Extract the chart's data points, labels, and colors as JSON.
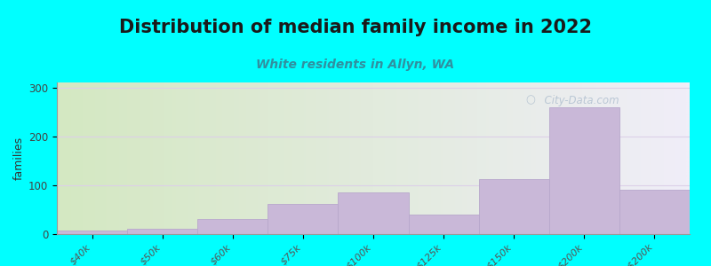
{
  "title": "Distribution of median family income in 2022",
  "subtitle": "White residents in Allyn, WA",
  "ylabel": "families",
  "categories": [
    "$40k",
    "$50k",
    "$60k",
    "$75k",
    "$100k",
    "$125k",
    "$150k",
    "$200k",
    "> $200k"
  ],
  "values": [
    8,
    10,
    30,
    62,
    85,
    40,
    112,
    260,
    90
  ],
  "bar_color": "#c9b8d8",
  "bar_edge_color": "#b8a8cc",
  "ylim": [
    0,
    310
  ],
  "yticks": [
    0,
    100,
    200,
    300
  ],
  "bg_color": "#00ffff",
  "plot_bg_left": "#d4e8c2",
  "plot_bg_right": "#f0eef8",
  "grid_color": "#dcd0e8",
  "title_fontsize": 15,
  "subtitle_fontsize": 10,
  "subtitle_color": "#3090a0",
  "ylabel_fontsize": 9,
  "watermark": "  City-Data.com"
}
